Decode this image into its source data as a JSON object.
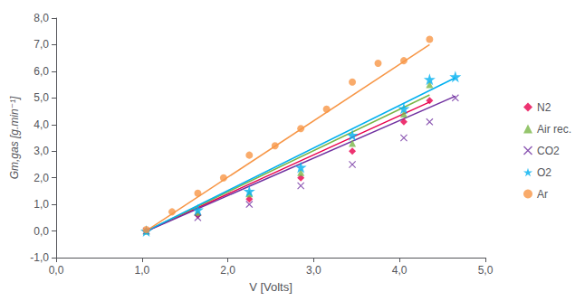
{
  "chart_data": {
    "type": "scatter",
    "xlabel": "V [Volts]",
    "ylabel": "Gm,gas [g.min⁻¹]",
    "xlim": [
      0.0,
      5.0
    ],
    "ylim": [
      -1.0,
      8.0
    ],
    "xticks": [
      {
        "value": 0.0,
        "label": "0,0"
      },
      {
        "value": 1.0,
        "label": "1,0"
      },
      {
        "value": 2.0,
        "label": "2,0"
      },
      {
        "value": 3.0,
        "label": "3,0"
      },
      {
        "value": 4.0,
        "label": "4,0"
      },
      {
        "value": 5.0,
        "label": "5,0"
      }
    ],
    "yticks": [
      {
        "value": -1.0,
        "label": "-1,0"
      },
      {
        "value": 0.0,
        "label": "0,0"
      },
      {
        "value": 1.0,
        "label": "1,0"
      },
      {
        "value": 2.0,
        "label": "2,0"
      },
      {
        "value": 3.0,
        "label": "3,0"
      },
      {
        "value": 4.0,
        "label": "4,0"
      },
      {
        "value": 5.0,
        "label": "5,0"
      },
      {
        "value": 6.0,
        "label": "6,0"
      },
      {
        "value": 7.0,
        "label": "7,0"
      },
      {
        "value": 8.0,
        "label": "8,0"
      }
    ],
    "grid": false,
    "legend": "right",
    "series": [
      {
        "name": "N2",
        "color": "#e8004d",
        "marker": "diamond",
        "x": [
          1.05,
          1.65,
          2.25,
          2.85,
          3.45,
          4.05,
          4.35
        ],
        "values": [
          0.0,
          0.6,
          1.2,
          2.0,
          3.0,
          4.1,
          4.9
        ],
        "fit": {
          "x": [
            1.05,
            4.35
          ],
          "values": [
            -0.0065,
            4.8445
          ]
        }
      },
      {
        "name": "Air rec.",
        "color": "#7ab648",
        "marker": "triangle",
        "x": [
          1.05,
          1.65,
          2.25,
          2.85,
          3.45,
          4.05,
          4.35
        ],
        "values": [
          0.0,
          0.7,
          1.4,
          2.2,
          3.3,
          4.4,
          5.5
        ],
        "fit": {
          "x": [
            1.05,
            4.35
          ],
          "values": [
            -0.0025,
            5.1125
          ]
        }
      },
      {
        "name": "CO2",
        "color": "#7030a0",
        "marker": "x",
        "x": [
          1.05,
          1.65,
          2.25,
          2.85,
          3.45,
          4.05,
          4.35,
          4.65
        ],
        "values": [
          0.0,
          0.5,
          1.0,
          1.7,
          2.5,
          3.5,
          4.1,
          5.0
        ],
        "fit": {
          "x": [
            1.05,
            4.65
          ],
          "values": [
            -0.0095,
            5.0665
          ]
        }
      },
      {
        "name": "O2",
        "color": "#00b0f0",
        "marker": "star",
        "x": [
          1.05,
          1.65,
          2.25,
          2.85,
          3.45,
          4.05,
          4.35,
          4.65
        ],
        "values": [
          0.0,
          0.8,
          1.5,
          2.4,
          3.6,
          4.6,
          5.7,
          5.8
        ],
        "fit": {
          "x": [
            1.05,
            4.65
          ],
          "values": [
            0.0,
            5.76
          ]
        }
      },
      {
        "name": "Ar",
        "color": "#f79646",
        "marker": "circle",
        "x": [
          1.05,
          1.35,
          1.65,
          1.95,
          2.25,
          2.55,
          2.85,
          3.15,
          3.45,
          3.75,
          4.05,
          4.35
        ],
        "values": [
          0.05,
          0.72,
          1.42,
          2.0,
          2.85,
          3.2,
          3.85,
          4.58,
          5.6,
          6.3,
          6.4,
          7.2
        ],
        "fit": {
          "x": [
            1.05,
            4.35
          ],
          "values": [
            0.006,
            7.002
          ]
        }
      }
    ]
  }
}
